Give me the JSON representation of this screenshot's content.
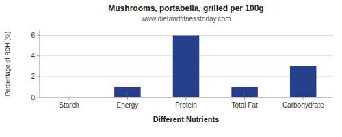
{
  "chart_data": {
    "type": "bar",
    "title": "Mushrooms, portabella, grilled per 100g",
    "subtitle": "www.dietandfitnesstoday.com",
    "xlabel": "Different Nutrients",
    "ylabel": "Percentage of RDH (%)",
    "categories": [
      "Starch",
      "Energy",
      "Protein",
      "Total Fat",
      "Carbohydrate"
    ],
    "values": [
      0,
      1.0,
      6.0,
      1.0,
      3.0
    ],
    "color": "#27408B",
    "ylim": [
      0,
      6.5
    ],
    "yticks": [
      0,
      2,
      4,
      6
    ],
    "grid": true
  }
}
